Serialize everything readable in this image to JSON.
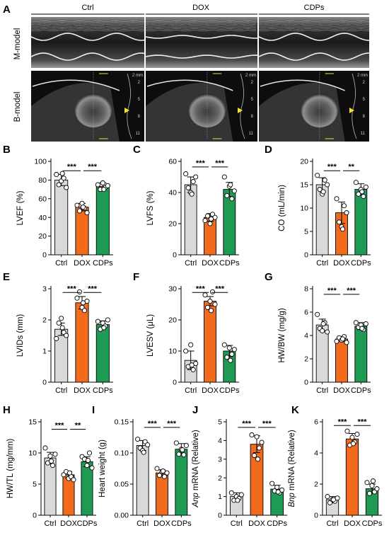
{
  "panel_a": {
    "letter": "A",
    "column_labels": [
      "Ctrl",
      "DOX",
      "CDPs"
    ],
    "row_labels": [
      "M-model",
      "B-model"
    ],
    "scale_text": "2 mm",
    "depth_ticks": [
      "2",
      "5",
      "8",
      "11"
    ]
  },
  "colors": {
    "Ctrl": "#d9d9d9",
    "DOX": "#f26b1d",
    "CDPs": "#1e9a54"
  },
  "chart_data": [
    {
      "letter": "B",
      "type": "bar",
      "categories": [
        "Ctrl",
        "DOX",
        "CDPs"
      ],
      "values": [
        80,
        51,
        73
      ],
      "errors": [
        6,
        4,
        4
      ],
      "points": [
        [
          86,
          75,
          79,
          82,
          72,
          87
        ],
        [
          53,
          47,
          55,
          50,
          45,
          51
        ],
        [
          75,
          70,
          77,
          72,
          74,
          70
        ]
      ],
      "ylabel": "LVEF (%)",
      "ylim": [
        0,
        100
      ],
      "yticks": [
        0,
        20,
        40,
        60,
        80,
        100
      ],
      "significance": [
        {
          "from": 0,
          "to": 1,
          "label": "***"
        },
        {
          "from": 1,
          "to": 2,
          "label": "***"
        }
      ]
    },
    {
      "letter": "C",
      "type": "bar",
      "categories": [
        "Ctrl",
        "DOX",
        "CDPs"
      ],
      "values": [
        45,
        24,
        42
      ],
      "errors": [
        5,
        2.5,
        4.5
      ],
      "points": [
        [
          52,
          43,
          40,
          47,
          50,
          39
        ],
        [
          22,
          25,
          20,
          26,
          24,
          23
        ],
        [
          50,
          38,
          44,
          36,
          41,
          45
        ]
      ],
      "ylabel": "LVFS (%)",
      "ylim": [
        0,
        60
      ],
      "yticks": [
        0,
        20,
        40,
        60
      ],
      "significance": [
        {
          "from": 0,
          "to": 1,
          "label": "***"
        },
        {
          "from": 1,
          "to": 2,
          "label": "***"
        }
      ]
    },
    {
      "letter": "D",
      "type": "bar",
      "categories": [
        "Ctrl",
        "DOX",
        "CDPs"
      ],
      "values": [
        15,
        9,
        14
      ],
      "errors": [
        1.5,
        2.3,
        1.2
      ],
      "points": [
        [
          17,
          14,
          13,
          16,
          15,
          13.5
        ],
        [
          12,
          7,
          6,
          10.5,
          9,
          5.5
        ],
        [
          15.5,
          13,
          14,
          12.5,
          14.5,
          13.5
        ]
      ],
      "ylabel": "CO (mL/min)",
      "ylim": [
        0,
        20
      ],
      "yticks": [
        0,
        5,
        10,
        15,
        20
      ],
      "significance": [
        {
          "from": 0,
          "to": 1,
          "label": "***"
        },
        {
          "from": 1,
          "to": 2,
          "label": "**"
        }
      ]
    },
    {
      "letter": "E",
      "type": "bar",
      "categories": [
        "Ctrl",
        "DOX",
        "CDPs"
      ],
      "values": [
        1.7,
        2.55,
        1.85
      ],
      "errors": [
        0.2,
        0.2,
        0.12
      ],
      "points": [
        [
          1.4,
          1.9,
          2.05,
          1.6,
          1.5,
          1.75
        ],
        [
          2.7,
          2.9,
          2.4,
          2.3,
          2.6,
          2.55
        ],
        [
          1.95,
          1.7,
          1.9,
          1.8,
          2.0,
          1.75
        ]
      ],
      "ylabel": "LVIDs (mm)",
      "ylim": [
        0,
        3
      ],
      "yticks": [
        0,
        1,
        2,
        3
      ],
      "significance": [
        {
          "from": 0,
          "to": 1,
          "label": "***"
        },
        {
          "from": 1,
          "to": 2,
          "label": "***"
        }
      ]
    },
    {
      "letter": "F",
      "type": "bar",
      "categories": [
        "Ctrl",
        "DOX",
        "CDPs"
      ],
      "values": [
        7,
        26,
        10
      ],
      "errors": [
        3,
        1.5,
        1.8
      ],
      "points": [
        [
          10,
          5,
          12,
          4,
          6,
          5.5
        ],
        [
          28,
          24,
          26,
          29,
          25,
          23
        ],
        [
          12,
          8,
          11,
          9,
          10.5,
          7
        ]
      ],
      "ylabel": "LVESV (μL)",
      "ylim": [
        0,
        30
      ],
      "yticks": [
        0,
        10,
        20,
        30
      ],
      "significance": [
        {
          "from": 0,
          "to": 1,
          "label": "***"
        },
        {
          "from": 1,
          "to": 2,
          "label": "***"
        }
      ]
    },
    {
      "letter": "G",
      "type": "bar",
      "categories": [
        "Ctrl",
        "DOX",
        "CDPs"
      ],
      "values": [
        4.9,
        3.7,
        4.8
      ],
      "errors": [
        0.5,
        0.2,
        0.3
      ],
      "points": [
        [
          5.8,
          4.6,
          4.4,
          5.1,
          4.3,
          5.0
        ],
        [
          3.5,
          3.8,
          3.6,
          3.9,
          3.4,
          3.7
        ],
        [
          5.1,
          4.7,
          4.9,
          4.5,
          5.0,
          4.6
        ]
      ],
      "ylabel": "HW/BW (mg/g)",
      "ylim": [
        0,
        8
      ],
      "yticks": [
        0,
        2,
        4,
        6,
        8
      ],
      "significance": [
        {
          "from": 0,
          "to": 1,
          "label": "***"
        },
        {
          "from": 1,
          "to": 2,
          "label": "***"
        }
      ]
    },
    {
      "letter": "H",
      "type": "bar",
      "categories": [
        "Ctrl",
        "DOX",
        "CDPs"
      ],
      "values": [
        9.2,
        6.5,
        8.6
      ],
      "errors": [
        0.9,
        0.5,
        0.8
      ],
      "points": [
        [
          10.8,
          8.4,
          9.5,
          8.0,
          9.8,
          8.7
        ],
        [
          6.5,
          7.0,
          5.9,
          6.2,
          5.7,
          6.8
        ],
        [
          9.4,
          9.0,
          8.0,
          10.0,
          7.6,
          8.8
        ]
      ],
      "ylabel": "HW/TL (mg/mm)",
      "ylim": [
        0,
        15
      ],
      "yticks": [
        0,
        5,
        10,
        15
      ],
      "significance": [
        {
          "from": 0,
          "to": 1,
          "label": "***"
        },
        {
          "from": 1,
          "to": 2,
          "label": "**"
        }
      ]
    },
    {
      "letter": "I",
      "type": "bar",
      "categories": [
        "Ctrl",
        "DOX",
        "CDPs"
      ],
      "values": [
        0.112,
        0.068,
        0.106
      ],
      "errors": [
        0.008,
        0.005,
        0.009
      ],
      "points": [
        [
          0.122,
          0.108,
          0.104,
          0.118,
          0.113,
          0.101
        ],
        [
          0.075,
          0.064,
          0.07,
          0.062,
          0.068,
          0.071
        ],
        [
          0.116,
          0.098,
          0.106,
          0.097,
          0.112,
          0.105
        ]
      ],
      "ylabel": "Heart weight (g)",
      "ylim": [
        0,
        0.15
      ],
      "yticks": [
        0.0,
        0.05,
        0.1,
        0.15
      ],
      "ytick_labels": [
        "0.00",
        "0.05",
        "0.10",
        "0.15"
      ],
      "significance": [
        {
          "from": 0,
          "to": 1,
          "label": "***"
        },
        {
          "from": 1,
          "to": 2,
          "label": "***"
        }
      ]
    },
    {
      "letter": "J",
      "type": "bar",
      "categories": [
        "Ctrl",
        "DOX",
        "CDPs"
      ],
      "values": [
        1.0,
        3.8,
        1.4
      ],
      "errors": [
        0.2,
        0.45,
        0.2
      ],
      "points": [
        [
          1.2,
          0.8,
          1.0,
          0.9,
          1.1,
          0.8
        ],
        [
          4.3,
          3.2,
          4.2,
          3.6,
          3.9,
          3.0
        ],
        [
          1.7,
          1.3,
          1.5,
          1.2,
          1.35,
          1.25
        ]
      ],
      "ylabel_italic": "Anp",
      "ylabel": "mRNA (Relative)",
      "ylim": [
        0,
        5
      ],
      "yticks": [
        0,
        1,
        2,
        3,
        4,
        5
      ],
      "significance": [
        {
          "from": 0,
          "to": 1,
          "label": "***"
        },
        {
          "from": 1,
          "to": 2,
          "label": "***"
        }
      ]
    },
    {
      "letter": "K",
      "type": "bar",
      "categories": [
        "Ctrl",
        "DOX",
        "CDPs"
      ],
      "values": [
        1.0,
        4.9,
        1.7
      ],
      "errors": [
        0.2,
        0.35,
        0.3
      ],
      "points": [
        [
          1.2,
          0.8,
          1.0,
          0.9,
          1.1,
          1.0
        ],
        [
          5.4,
          4.5,
          5.0,
          4.7,
          5.2,
          4.6
        ],
        [
          2.1,
          1.4,
          1.9,
          1.5,
          1.7,
          2.2
        ]
      ],
      "ylabel_italic": "Bnp",
      "ylabel": "mRNA (Relative)",
      "ylim": [
        0,
        6
      ],
      "yticks": [
        0,
        2,
        4,
        6
      ],
      "significance": [
        {
          "from": 0,
          "to": 1,
          "label": "***"
        },
        {
          "from": 1,
          "to": 2,
          "label": "***"
        }
      ]
    }
  ]
}
